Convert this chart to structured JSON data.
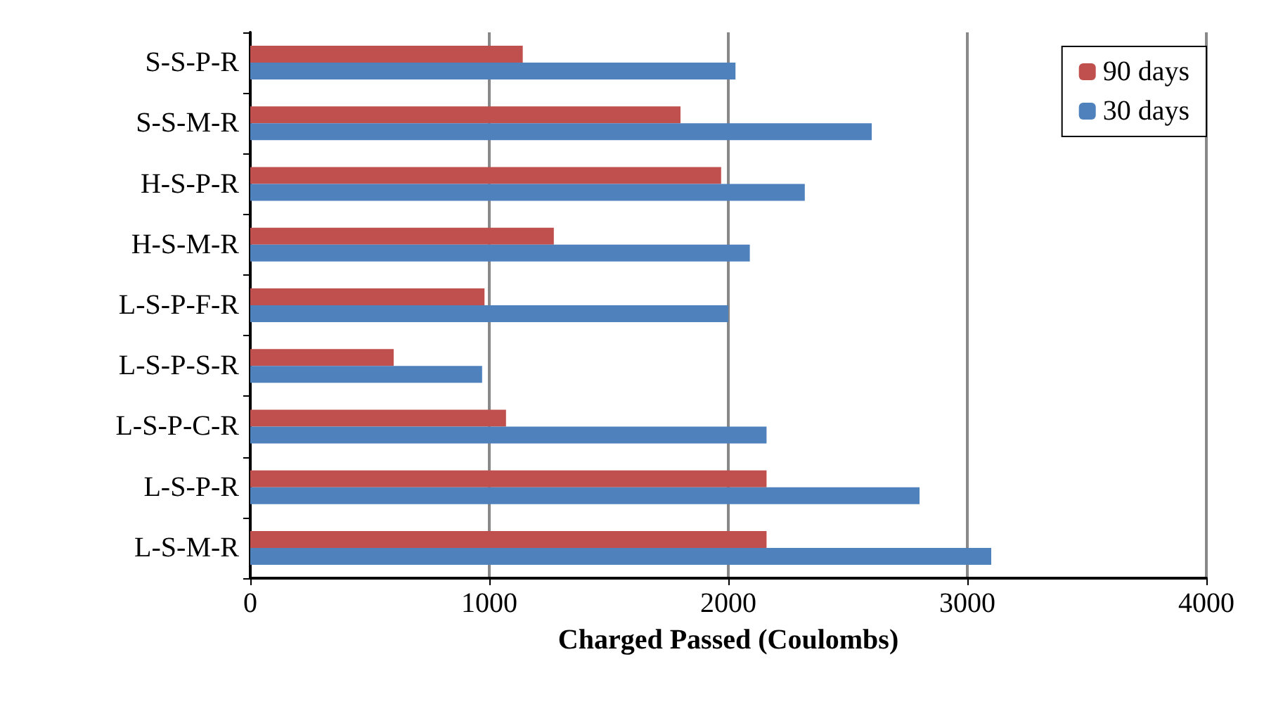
{
  "chart_data": {
    "type": "bar",
    "orientation": "horizontal",
    "xlabel": "Charged Passed (Coulombs)",
    "categories": [
      "S-S-P-R",
      "S-S-M-R",
      "H-S-P-R",
      "H-S-M-R",
      "L-S-P-F-R",
      "L-S-P-S-R",
      "L-S-P-C-R",
      "L-S-P-R",
      "L-S-M-R"
    ],
    "series": [
      {
        "name": "90 days",
        "color": "#c0504d",
        "values": [
          1140,
          1800,
          1970,
          1270,
          980,
          600,
          1070,
          2160,
          2160
        ]
      },
      {
        "name": "30 days",
        "color": "#4f81bd",
        "values": [
          2030,
          2600,
          2320,
          2090,
          2000,
          970,
          2160,
          2800,
          3100
        ]
      }
    ],
    "xlim": [
      0,
      4000
    ],
    "xticks": [
      0,
      1000,
      2000,
      3000,
      4000
    ],
    "grid": "x",
    "legend": "top right"
  }
}
